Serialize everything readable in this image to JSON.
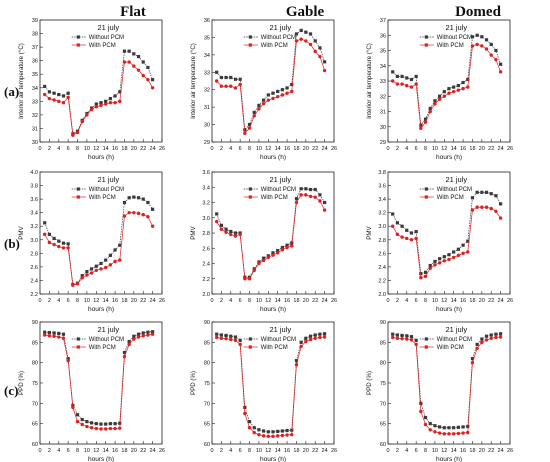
{
  "figure": {
    "column_headers": [
      "Flat",
      "Gable",
      "Domed"
    ],
    "row_labels": [
      "(a)",
      "(b)",
      "(c)"
    ]
  },
  "colors": {
    "without_pcm": "#3a3a3a",
    "with_pcm": "#e02020"
  },
  "chart_data": [
    {
      "type": "line",
      "panel": "Flat (a)",
      "title": "21 july",
      "xlabel": "hours (h)",
      "ylabel": "Interior air temperature (°C)",
      "xlim": [
        0,
        26
      ],
      "ylim": [
        30,
        39
      ],
      "xticks": [
        0,
        2,
        4,
        6,
        8,
        10,
        12,
        14,
        16,
        18,
        20,
        22,
        24,
        26
      ],
      "yticks": [
        30,
        31,
        32,
        33,
        34,
        35,
        36,
        37,
        38,
        39
      ],
      "legend": [
        "Without PCM",
        "With PCM"
      ],
      "x": [
        1,
        2,
        3,
        4,
        5,
        6,
        7,
        8,
        9,
        10,
        11,
        12,
        13,
        14,
        15,
        16,
        17,
        18,
        19,
        20,
        21,
        22,
        23,
        24
      ],
      "series": [
        {
          "name": "Without PCM",
          "values": [
            34.1,
            33.7,
            33.6,
            33.5,
            33.4,
            33.6,
            30.6,
            30.8,
            31.6,
            32.1,
            32.5,
            32.8,
            32.9,
            33.0,
            33.2,
            33.4,
            33.7,
            36.7,
            36.7,
            36.5,
            36.3,
            35.9,
            35.5,
            34.6
          ]
        },
        {
          "name": "With PCM",
          "values": [
            33.5,
            33.2,
            33.1,
            33.0,
            32.9,
            33.3,
            30.5,
            30.7,
            31.5,
            32.0,
            32.4,
            32.6,
            32.7,
            32.8,
            32.9,
            32.9,
            33.0,
            35.9,
            35.9,
            35.6,
            35.3,
            34.9,
            34.6,
            34.0
          ]
        }
      ]
    },
    {
      "type": "line",
      "panel": "Gable (a)",
      "title": "21 july",
      "xlabel": "hours (h)",
      "ylabel": "Interior air temperature (°C)",
      "xlim": [
        0,
        26
      ],
      "ylim": [
        29,
        36
      ],
      "xticks": [
        0,
        2,
        4,
        6,
        8,
        10,
        12,
        14,
        16,
        18,
        20,
        22,
        24,
        26
      ],
      "yticks": [
        29,
        30,
        31,
        32,
        33,
        34,
        35,
        36
      ],
      "legend": [
        "Without PCM",
        "With PCM"
      ],
      "x": [
        1,
        2,
        3,
        4,
        5,
        6,
        7,
        8,
        9,
        10,
        11,
        12,
        13,
        14,
        15,
        16,
        17,
        18,
        19,
        20,
        21,
        22,
        23,
        24
      ],
      "series": [
        {
          "name": "Without PCM",
          "values": [
            33.0,
            32.7,
            32.7,
            32.7,
            32.6,
            32.6,
            29.7,
            30.0,
            30.7,
            31.1,
            31.4,
            31.7,
            31.8,
            31.9,
            32.0,
            32.1,
            32.3,
            35.2,
            35.4,
            35.3,
            35.2,
            34.8,
            34.4,
            33.6
          ]
        },
        {
          "name": "With PCM",
          "values": [
            32.5,
            32.2,
            32.2,
            32.2,
            32.1,
            32.3,
            29.5,
            29.8,
            30.5,
            30.9,
            31.2,
            31.4,
            31.5,
            31.6,
            31.7,
            31.8,
            31.9,
            34.8,
            34.9,
            34.8,
            34.6,
            34.2,
            33.9,
            33.1
          ]
        }
      ]
    },
    {
      "type": "line",
      "panel": "Domed (a)",
      "title": "21 july",
      "xlabel": "hours (h)",
      "ylabel": "Interior air temperature (°C)",
      "xlim": [
        0,
        26
      ],
      "ylim": [
        29,
        37
      ],
      "xticks": [
        0,
        2,
        4,
        6,
        8,
        10,
        12,
        14,
        16,
        18,
        20,
        22,
        24,
        26
      ],
      "yticks": [
        29,
        30,
        31,
        32,
        33,
        34,
        35,
        36,
        37
      ],
      "legend": [
        "Without PCM",
        "With PCM"
      ],
      "x": [
        1,
        2,
        3,
        4,
        5,
        6,
        7,
        8,
        9,
        10,
        11,
        12,
        13,
        14,
        15,
        16,
        17,
        18,
        19,
        20,
        21,
        22,
        23,
        24
      ],
      "series": [
        {
          "name": "Without PCM",
          "values": [
            33.6,
            33.3,
            33.3,
            33.2,
            33.1,
            33.3,
            30.1,
            30.5,
            31.2,
            31.7,
            32.0,
            32.3,
            32.5,
            32.6,
            32.7,
            32.9,
            33.1,
            35.9,
            36.0,
            35.9,
            35.7,
            35.4,
            35.0,
            34.1
          ]
        },
        {
          "name": "With PCM",
          "values": [
            33.0,
            32.8,
            32.8,
            32.7,
            32.6,
            32.8,
            29.9,
            30.3,
            31.0,
            31.5,
            31.8,
            32.0,
            32.2,
            32.3,
            32.4,
            32.5,
            32.6,
            35.3,
            35.4,
            35.3,
            35.1,
            34.7,
            34.4,
            33.6
          ]
        }
      ]
    },
    {
      "type": "line",
      "panel": "Flat (b)",
      "title": "21 july",
      "xlabel": "hours (h)",
      "ylabel": "PMV",
      "xlim": [
        0,
        26
      ],
      "ylim": [
        2.2,
        4.0
      ],
      "xticks": [
        0,
        2,
        4,
        6,
        8,
        10,
        12,
        14,
        16,
        18,
        20,
        22,
        24,
        26
      ],
      "yticks": [
        2.2,
        2.4,
        2.6,
        2.8,
        3.0,
        3.2,
        3.4,
        3.6,
        3.8,
        4.0
      ],
      "legend": [
        "Without PCM",
        "With PCM"
      ],
      "x": [
        1,
        2,
        3,
        4,
        5,
        6,
        7,
        8,
        9,
        10,
        11,
        12,
        13,
        14,
        15,
        16,
        17,
        18,
        19,
        20,
        21,
        22,
        23,
        24
      ],
      "series": [
        {
          "name": "Without PCM",
          "values": [
            3.25,
            3.08,
            3.02,
            2.98,
            2.95,
            2.94,
            2.34,
            2.36,
            2.47,
            2.53,
            2.57,
            2.61,
            2.65,
            2.7,
            2.77,
            2.85,
            2.92,
            3.55,
            3.62,
            3.63,
            3.62,
            3.6,
            3.55,
            3.45
          ]
        },
        {
          "name": "With PCM",
          "values": [
            3.08,
            2.96,
            2.93,
            2.9,
            2.88,
            2.88,
            2.33,
            2.35,
            2.44,
            2.48,
            2.51,
            2.55,
            2.57,
            2.59,
            2.63,
            2.68,
            2.7,
            3.35,
            3.4,
            3.4,
            3.39,
            3.37,
            3.34,
            3.2
          ]
        }
      ]
    },
    {
      "type": "line",
      "panel": "Gable (b)",
      "title": "21 july",
      "xlabel": "hours (h)",
      "ylabel": "PMV",
      "xlim": [
        0,
        26
      ],
      "ylim": [
        2.0,
        3.6
      ],
      "xticks": [
        0,
        2,
        4,
        6,
        8,
        10,
        12,
        14,
        16,
        18,
        20,
        22,
        24,
        26
      ],
      "yticks": [
        2.0,
        2.2,
        2.4,
        2.6,
        2.8,
        3.0,
        3.2,
        3.4,
        3.6
      ],
      "legend": [
        "Without PCM",
        "With PCM"
      ],
      "x": [
        1,
        2,
        3,
        4,
        5,
        6,
        7,
        8,
        9,
        10,
        11,
        12,
        13,
        14,
        15,
        16,
        17,
        18,
        19,
        20,
        21,
        22,
        23,
        24
      ],
      "series": [
        {
          "name": "Without PCM",
          "values": [
            3.05,
            2.9,
            2.85,
            2.82,
            2.8,
            2.8,
            2.22,
            2.22,
            2.33,
            2.42,
            2.47,
            2.5,
            2.54,
            2.57,
            2.61,
            2.64,
            2.67,
            3.25,
            3.38,
            3.38,
            3.37,
            3.37,
            3.3,
            3.2
          ]
        },
        {
          "name": "With PCM",
          "values": [
            2.95,
            2.85,
            2.81,
            2.78,
            2.76,
            2.78,
            2.2,
            2.2,
            2.31,
            2.4,
            2.44,
            2.48,
            2.51,
            2.54,
            2.58,
            2.61,
            2.63,
            3.2,
            3.3,
            3.3,
            3.28,
            3.27,
            3.22,
            3.1
          ]
        }
      ]
    },
    {
      "type": "line",
      "panel": "Domed (b)",
      "title": "21 july",
      "xlabel": "hours (h)",
      "ylabel": "PMV",
      "xlim": [
        0,
        26
      ],
      "ylim": [
        2.0,
        3.8
      ],
      "xticks": [
        0,
        2,
        4,
        6,
        8,
        10,
        12,
        14,
        16,
        18,
        20,
        22,
        24,
        26
      ],
      "yticks": [
        2.0,
        2.2,
        2.4,
        2.6,
        2.8,
        3.0,
        3.2,
        3.4,
        3.6,
        3.8
      ],
      "legend": [
        "Without PCM",
        "With PCM"
      ],
      "x": [
        1,
        2,
        3,
        4,
        5,
        6,
        7,
        8,
        9,
        10,
        11,
        12,
        13,
        14,
        15,
        16,
        17,
        18,
        19,
        20,
        21,
        22,
        23,
        24
      ],
      "series": [
        {
          "name": "Without PCM",
          "values": [
            3.18,
            3.05,
            3.0,
            2.94,
            2.9,
            2.92,
            2.3,
            2.32,
            2.42,
            2.48,
            2.52,
            2.55,
            2.58,
            2.62,
            2.66,
            2.72,
            2.78,
            3.42,
            3.5,
            3.5,
            3.5,
            3.48,
            3.45,
            3.33
          ]
        },
        {
          "name": "With PCM",
          "values": [
            3.0,
            2.88,
            2.84,
            2.82,
            2.8,
            2.82,
            2.24,
            2.26,
            2.38,
            2.43,
            2.46,
            2.49,
            2.51,
            2.54,
            2.57,
            2.6,
            2.62,
            3.24,
            3.28,
            3.28,
            3.28,
            3.26,
            3.22,
            3.12
          ]
        }
      ]
    },
    {
      "type": "line",
      "panel": "Flat (c)",
      "title": "21 july",
      "xlabel": "hours (h)",
      "ylabel": "PPD (%)",
      "xlim": [
        0,
        26
      ],
      "ylim": [
        60,
        90
      ],
      "xticks": [
        0,
        2,
        4,
        6,
        8,
        10,
        12,
        14,
        16,
        18,
        20,
        22,
        24,
        26
      ],
      "yticks": [
        60,
        65,
        70,
        75,
        80,
        85,
        90
      ],
      "legend": [
        "Without PCM",
        "With PCM"
      ],
      "x": [
        1,
        2,
        3,
        4,
        5,
        6,
        7,
        8,
        9,
        10,
        11,
        12,
        13,
        14,
        15,
        16,
        17,
        18,
        19,
        20,
        21,
        22,
        23,
        24
      ],
      "series": [
        {
          "name": "Without PCM",
          "values": [
            87.5,
            87.4,
            87.3,
            87.2,
            87.0,
            81.0,
            69.5,
            67.2,
            66.0,
            65.5,
            65.2,
            65.0,
            64.9,
            64.9,
            65.0,
            65.0,
            65.1,
            82.5,
            85.2,
            86.5,
            87.0,
            87.3,
            87.5,
            87.6
          ]
        },
        {
          "name": "With PCM",
          "values": [
            86.8,
            86.6,
            86.5,
            86.3,
            86.0,
            80.5,
            69.0,
            65.5,
            64.8,
            64.3,
            64.0,
            63.8,
            63.7,
            63.7,
            63.8,
            63.8,
            63.9,
            81.5,
            84.5,
            85.8,
            86.3,
            86.6,
            86.8,
            87.0
          ]
        }
      ]
    },
    {
      "type": "line",
      "panel": "Gable (c)",
      "title": "21 july",
      "xlabel": "hours (h)",
      "ylabel": "PPD (%)",
      "xlim": [
        0,
        26
      ],
      "ylim": [
        60,
        90
      ],
      "xticks": [
        0,
        2,
        4,
        6,
        8,
        10,
        12,
        14,
        16,
        18,
        20,
        22,
        24,
        26
      ],
      "yticks": [
        60,
        65,
        70,
        75,
        80,
        85,
        90
      ],
      "legend": [
        "Without PCM",
        "With PCM"
      ],
      "x": [
        1,
        2,
        3,
        4,
        5,
        6,
        7,
        8,
        9,
        10,
        11,
        12,
        13,
        14,
        15,
        16,
        17,
        18,
        19,
        20,
        21,
        22,
        23,
        24
      ],
      "series": [
        {
          "name": "Without PCM",
          "values": [
            87.0,
            86.8,
            86.7,
            86.5,
            86.3,
            85.5,
            69.0,
            65.5,
            64.0,
            63.5,
            63.2,
            63.0,
            63.0,
            63.1,
            63.2,
            63.3,
            63.4,
            80.5,
            85.0,
            86.0,
            86.5,
            86.8,
            87.0,
            87.1
          ]
        },
        {
          "name": "With PCM",
          "values": [
            86.2,
            86.0,
            85.9,
            85.7,
            85.5,
            84.5,
            67.5,
            64.0,
            62.8,
            62.3,
            62.0,
            61.9,
            61.9,
            62.0,
            62.1,
            62.2,
            62.3,
            79.5,
            84.0,
            85.2,
            85.7,
            86.0,
            86.2,
            86.3
          ]
        }
      ]
    },
    {
      "type": "line",
      "panel": "Domed (c)",
      "title": "21 july",
      "xlabel": "hours (h)",
      "ylabel": "PPD (%)",
      "xlim": [
        0,
        26
      ],
      "ylim": [
        60,
        90
      ],
      "xticks": [
        0,
        2,
        4,
        6,
        8,
        10,
        12,
        14,
        16,
        18,
        20,
        22,
        24,
        26
      ],
      "yticks": [
        60,
        65,
        70,
        75,
        80,
        85,
        90
      ],
      "legend": [
        "Without PCM",
        "With PCM"
      ],
      "x": [
        1,
        2,
        3,
        4,
        5,
        6,
        7,
        8,
        9,
        10,
        11,
        12,
        13,
        14,
        15,
        16,
        17,
        18,
        19,
        20,
        21,
        22,
        23,
        24
      ],
      "series": [
        {
          "name": "Without PCM",
          "values": [
            87.0,
            86.8,
            86.7,
            86.6,
            86.4,
            85.5,
            70.0,
            66.5,
            65.0,
            64.5,
            64.2,
            64.0,
            64.0,
            64.0,
            64.1,
            64.2,
            64.3,
            81.0,
            84.5,
            85.8,
            86.5,
            86.8,
            87.0,
            87.1
          ]
        },
        {
          "name": "With PCM",
          "values": [
            86.2,
            86.0,
            85.9,
            85.8,
            85.6,
            84.5,
            68.0,
            64.8,
            63.5,
            63.0,
            62.7,
            62.5,
            62.5,
            62.5,
            62.6,
            62.7,
            62.8,
            80.0,
            83.5,
            85.0,
            85.6,
            86.0,
            86.2,
            86.3
          ]
        }
      ]
    }
  ]
}
